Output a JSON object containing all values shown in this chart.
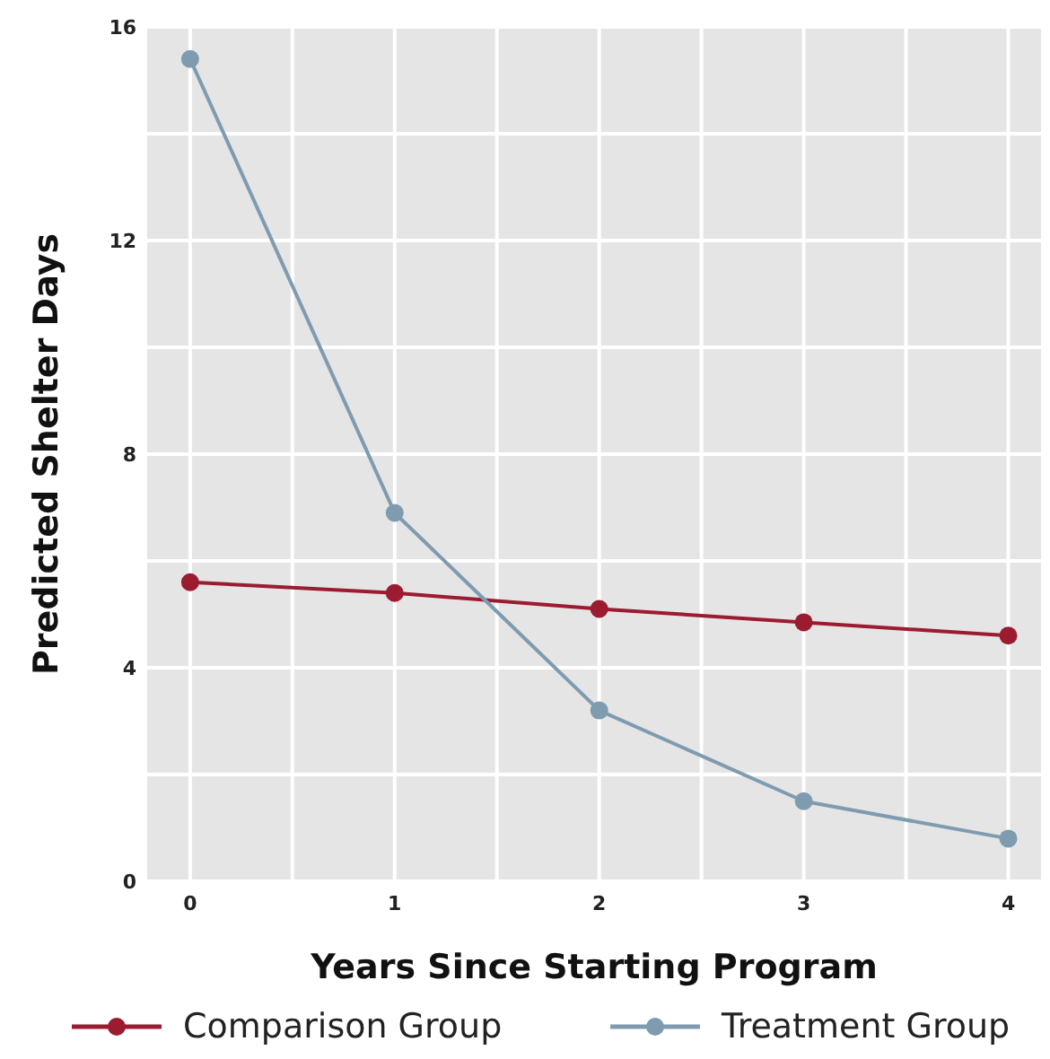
{
  "chart_data": {
    "type": "line",
    "xlabel": "Years Since Starting Program",
    "ylabel": "Predicted Shelter Days",
    "x": [
      0,
      1,
      2,
      3,
      4
    ],
    "xlim": [
      -0.21,
      4.16
    ],
    "xticks": [
      0,
      {
        "value": 0.5,
        "label": null
      },
      1,
      {
        "value": 1.5,
        "label": null
      },
      2,
      {
        "value": 2.5,
        "label": null
      },
      3,
      {
        "value": 3.5,
        "label": null
      },
      4
    ],
    "ylim": [
      0,
      16
    ],
    "yticks": [
      0,
      {
        "value": 2,
        "label": null
      },
      4,
      {
        "value": 6,
        "label": null
      },
      8,
      {
        "value": 10,
        "label": null
      },
      12,
      {
        "value": 14,
        "label": null
      },
      16
    ],
    "grid": true,
    "legend": "bottom",
    "marker": "circle",
    "line_style": "solid",
    "series": [
      {
        "name": "Comparison Group",
        "color": "#9b1b30",
        "values": [
          5.6,
          5.4,
          5.1,
          4.85,
          4.6
        ]
      },
      {
        "name": "Treatment Group",
        "color": "#7f9bb0",
        "values": [
          15.4,
          6.9,
          3.2,
          1.5,
          0.8
        ]
      }
    ]
  }
}
